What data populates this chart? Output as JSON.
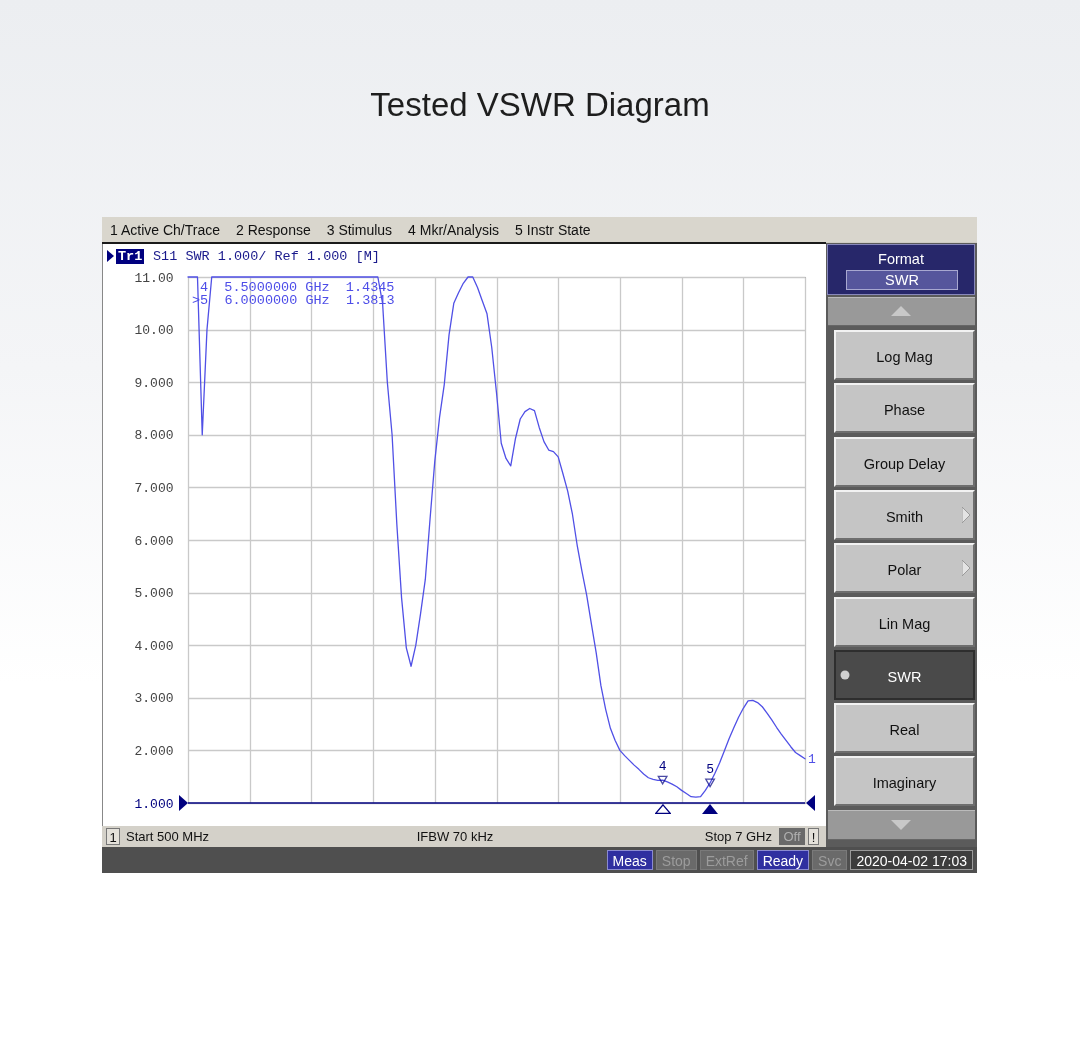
{
  "chart_data": {
    "type": "line",
    "title": "Tested VSWR Diagram",
    "categories": [
      null,
      null,
      null,
      null,
      null,
      null,
      null,
      null,
      null,
      null,
      null,
      null,
      null,
      null,
      null,
      null,
      null,
      null,
      null,
      null,
      null,
      null,
      null,
      null,
      null,
      null,
      null,
      null,
      null,
      null,
      null,
      null,
      null,
      null,
      null,
      null,
      null,
      null,
      null,
      null,
      null,
      null,
      null,
      null,
      null,
      null,
      null,
      null,
      null,
      null,
      null,
      null,
      null,
      null,
      null,
      null,
      null,
      null,
      null,
      null,
      null,
      null,
      null,
      null,
      null,
      null,
      null,
      null,
      null,
      null,
      null,
      null,
      null,
      null,
      null,
      null,
      null,
      null,
      null,
      null,
      null,
      null,
      null,
      null,
      null,
      null,
      null,
      null,
      null,
      null,
      null,
      null,
      null,
      null,
      null,
      null,
      null,
      null,
      null,
      null,
      null,
      null,
      null,
      null,
      null,
      null,
      null,
      null,
      null,
      null,
      null,
      null,
      null,
      null,
      null,
      null,
      null,
      null,
      null,
      null,
      null,
      null,
      null,
      null,
      null,
      null,
      null,
      null,
      null,
      null,
      null
    ],
    "series": [
      {
        "name": "1",
        "color": "#5050e6",
        "values": [
          11,
          11,
          11,
          8.0,
          10.0,
          11,
          11,
          11,
          11,
          11,
          11,
          11,
          11,
          11,
          11,
          11,
          11,
          11,
          11,
          11,
          11,
          11,
          11,
          11,
          11,
          11,
          11,
          11,
          11,
          11,
          11,
          11,
          11,
          11,
          11,
          11,
          11,
          11,
          11,
          11,
          11,
          10.5,
          9.0,
          8.0,
          6.3,
          4.9,
          3.95,
          3.6,
          4.0,
          4.6,
          5.25,
          6.4,
          7.5,
          8.33,
          8.96,
          9.9,
          10.5,
          10.7,
          10.88,
          11.0,
          11.0,
          10.8,
          10.55,
          10.3,
          9.66,
          8.8,
          7.84,
          7.55,
          7.41,
          7.93,
          8.3,
          8.44,
          8.5,
          8.46,
          8.14,
          7.87,
          7.71,
          7.68,
          7.58,
          7.26,
          6.93,
          6.49,
          5.9,
          5.41,
          4.95,
          4.4,
          3.86,
          3.23,
          2.78,
          2.42,
          2.19,
          2.0,
          1.9,
          1.81,
          1.72,
          1.64,
          1.55,
          1.48,
          1.45,
          1.43,
          1.4345,
          1.4,
          1.36,
          1.31,
          1.24,
          1.18,
          1.12,
          1.11,
          1.12,
          1.24,
          1.3813,
          1.56,
          1.76,
          1.99,
          2.22,
          2.43,
          2.63,
          2.8,
          2.94,
          2.95,
          2.91,
          2.83,
          2.71,
          2.58,
          2.44,
          2.31,
          2.19,
          2.07,
          1.96,
          1.9,
          1.84
        ]
      },
      {
        "name": "4",
        "type": "scatter",
        "marker": "triangle",
        "color": "#00007f",
        "values": [
          null,
          null,
          null,
          null,
          null,
          null,
          null,
          null,
          null,
          null,
          null,
          null,
          null,
          null,
          null,
          null,
          null,
          null,
          null,
          null,
          null,
          null,
          null,
          null,
          null,
          null,
          null,
          null,
          null,
          null,
          null,
          null,
          null,
          null,
          null,
          null,
          null,
          null,
          null,
          null,
          null,
          null,
          null,
          null,
          null,
          null,
          null,
          null,
          null,
          null,
          null,
          null,
          null,
          null,
          null,
          null,
          null,
          null,
          null,
          null,
          null,
          null,
          null,
          null,
          null,
          null,
          null,
          null,
          null,
          null,
          null,
          null,
          null,
          null,
          null,
          null,
          null,
          null,
          null,
          null,
          null,
          null,
          null,
          null,
          null,
          null,
          null,
          null,
          null,
          null,
          null,
          null,
          null,
          null,
          null,
          null,
          null,
          null,
          null,
          null,
          1.4345,
          null,
          null,
          null,
          null,
          null,
          null,
          null,
          null,
          null,
          null,
          null,
          null,
          null,
          null,
          null,
          null,
          null,
          null,
          null,
          null,
          null,
          null,
          null,
          null,
          null,
          null,
          null,
          null,
          null,
          null
        ]
      },
      {
        "name": "5",
        "type": "scatter",
        "marker": "triangle",
        "color": "#00007f",
        "values": [
          null,
          null,
          null,
          null,
          null,
          null,
          null,
          null,
          null,
          null,
          null,
          null,
          null,
          null,
          null,
          null,
          null,
          null,
          null,
          null,
          null,
          null,
          null,
          null,
          null,
          null,
          null,
          null,
          null,
          null,
          null,
          null,
          null,
          null,
          null,
          null,
          null,
          null,
          null,
          null,
          null,
          null,
          null,
          null,
          null,
          null,
          null,
          null,
          null,
          null,
          null,
          null,
          null,
          null,
          null,
          null,
          null,
          null,
          null,
          null,
          null,
          null,
          null,
          null,
          null,
          null,
          null,
          null,
          null,
          null,
          null,
          null,
          null,
          null,
          null,
          null,
          null,
          null,
          null,
          null,
          null,
          null,
          null,
          null,
          null,
          null,
          null,
          null,
          null,
          null,
          null,
          null,
          null,
          null,
          null,
          null,
          null,
          null,
          null,
          null,
          null,
          null,
          null,
          null,
          null,
          null,
          null,
          null,
          null,
          null,
          1.3813,
          null,
          null,
          null,
          null,
          null,
          null,
          null,
          null,
          null,
          null,
          null,
          null,
          null,
          null,
          null,
          null,
          null,
          null,
          null,
          null
        ]
      }
    ],
    "ylim": [
      1,
      11
    ],
    "yticks": [
      {
        "value": 1,
        "label": "1.000"
      },
      {
        "value": 2,
        "label": "2.000"
      },
      {
        "value": 3,
        "label": "3.000"
      },
      {
        "value": 4,
        "label": "4.000"
      },
      {
        "value": 5,
        "label": "5.000"
      },
      {
        "value": 6,
        "label": "6.000"
      },
      {
        "value": 7,
        "label": "7.000"
      },
      {
        "value": 8,
        "label": "8.000"
      },
      {
        "value": 9,
        "label": "9.000"
      },
      {
        "value": 10,
        "label": "10.00"
      },
      {
        "value": 11,
        "label": "11.00"
      }
    ],
    "tick_labels": "y",
    "grid": true,
    "ref_lines": [
      {
        "axis": "y",
        "value": 1,
        "color": "#00007f"
      }
    ],
    "annotations": [
      "1 Active Ch/Trace",
      "2 Response",
      "3 Stimulus",
      "4 Mkr/Analysis",
      "5 Instr State",
      "Tr1",
      "S11 SWR 1.000/ Ref 1.000 [M]",
      "4  5.5000000 GHz  1.4345",
      ">5  6.0000000 GHz  1.3813",
      "1",
      "Start 500 MHz",
      "IFBW 70 kHz",
      "Stop 7 GHz",
      "Off",
      "!",
      "Meas",
      "Stop",
      "ExtRef",
      "Ready",
      "Svc",
      "2020-04-02 17:03",
      "Format",
      "SWR",
      "Log Mag",
      "Phase",
      "Group Delay",
      "Smith",
      "Polar",
      "Lin Mag",
      "SWR",
      "Real",
      "Imaginary"
    ]
  }
}
